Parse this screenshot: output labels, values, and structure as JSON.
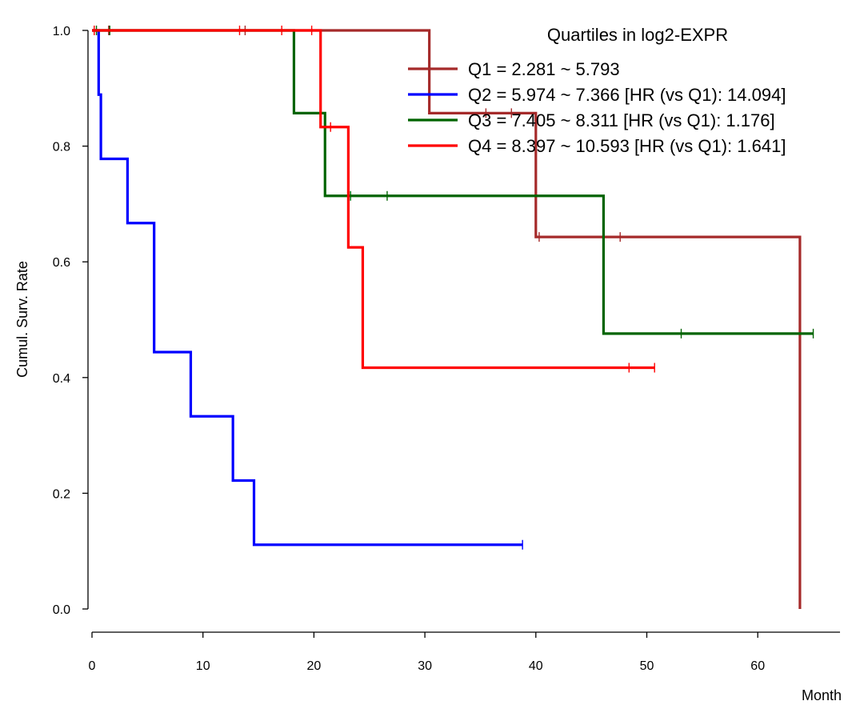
{
  "chart_data": {
    "type": "line",
    "subtype": "kaplan-meier-step",
    "title": "",
    "xlabel": "Month",
    "ylabel": "Cumul. Surv. Rate",
    "xlim": [
      0,
      68
    ],
    "ylim": [
      0,
      1.0
    ],
    "x_ticks": [
      "0",
      "10",
      "20",
      "30",
      "40",
      "50",
      "60"
    ],
    "x_tick_values": [
      0,
      10,
      20,
      30,
      40,
      50,
      60
    ],
    "y_ticks": [
      "0.0",
      "0.2",
      "0.4",
      "0.6",
      "0.8",
      "1.0"
    ],
    "y_tick_values": [
      0,
      0.2,
      0.4,
      0.6,
      0.8,
      1.0
    ],
    "grid": false,
    "legend": {
      "title": "Quartiles in log2-EXPR",
      "position": "top-right"
    },
    "series": [
      {
        "name": "Q1 = 2.281 ~ 5.793",
        "color": "#a52a2a",
        "steps": [
          [
            0,
            1.0
          ],
          [
            30.4,
            0.857
          ],
          [
            40.0,
            0.643
          ],
          [
            63.8,
            0.0
          ]
        ],
        "end_x": 63.8,
        "censor_marks": [
          [
            1.5,
            1.0
          ],
          [
            13.8,
            1.0
          ],
          [
            35.5,
            0.857
          ],
          [
            37.8,
            0.857
          ],
          [
            40.3,
            0.643
          ],
          [
            47.6,
            0.643
          ]
        ]
      },
      {
        "name": "Q2 = 5.974 ~ 7.366 [HR (vs Q1): 14.094]",
        "color": "#0000ff",
        "steps": [
          [
            0,
            1.0
          ],
          [
            0.6,
            0.889
          ],
          [
            0.8,
            0.778
          ],
          [
            3.2,
            0.667
          ],
          [
            5.6,
            0.444
          ],
          [
            8.9,
            0.333
          ],
          [
            12.7,
            0.222
          ],
          [
            14.6,
            0.111
          ]
        ],
        "end_x": 38.8,
        "censor_marks": [
          [
            38.8,
            0.111
          ]
        ]
      },
      {
        "name": "Q3 = 7.405 ~ 8.311 [HR (vs Q1): 1.176]",
        "color": "#006400",
        "steps": [
          [
            0,
            1.0
          ],
          [
            18.2,
            0.857
          ],
          [
            21.0,
            0.714
          ],
          [
            46.1,
            0.476
          ]
        ],
        "end_x": 65.0,
        "censor_marks": [
          [
            0.4,
            1.0
          ],
          [
            1.6,
            1.0
          ],
          [
            23.3,
            0.714
          ],
          [
            26.6,
            0.714
          ],
          [
            53.1,
            0.476
          ],
          [
            65.0,
            0.476
          ]
        ]
      },
      {
        "name": "Q4 = 8.397 ~ 10.593 [HR (vs Q1): 1.641]",
        "color": "#ff0000",
        "steps": [
          [
            0,
            1.0
          ],
          [
            20.6,
            0.833
          ],
          [
            23.1,
            0.625
          ],
          [
            24.4,
            0.417
          ]
        ],
        "end_x": 50.7,
        "censor_marks": [
          [
            0.2,
            1.0
          ],
          [
            13.3,
            1.0
          ],
          [
            17.1,
            1.0
          ],
          [
            19.8,
            1.0
          ],
          [
            21.5,
            0.833
          ],
          [
            48.4,
            0.417
          ],
          [
            50.7,
            0.417
          ]
        ]
      }
    ]
  }
}
